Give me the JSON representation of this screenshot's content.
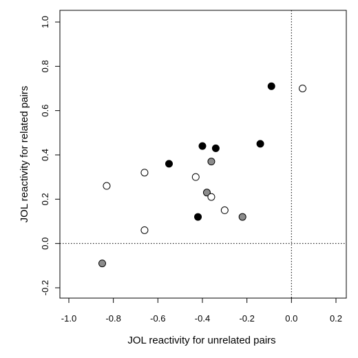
{
  "chart_data": {
    "type": "scatter",
    "xlabel": "JOL reactivity for unrelated pairs",
    "ylabel": "JOL reactivity for related pairs",
    "xlim": [
      -1.0,
      0.2
    ],
    "ylim": [
      -0.2,
      1.0
    ],
    "xticks": [
      -1.0,
      -0.8,
      -0.6,
      -0.4,
      -0.2,
      0.0,
      0.2
    ],
    "yticks": [
      -0.2,
      0.0,
      0.2,
      0.4,
      0.6,
      0.8,
      1.0
    ],
    "x_tick_labels": [
      "-1.0",
      "-0.8",
      "-0.6",
      "-0.4",
      "-0.2",
      "0.0",
      "0.2"
    ],
    "y_tick_labels": [
      "-0.2",
      "0.0",
      "0.2",
      "0.4",
      "0.6",
      "0.8",
      "1.0"
    ],
    "reference_lines": {
      "x": 0.0,
      "y": 0.0,
      "style": "dotted"
    },
    "grid": false,
    "legend": "none",
    "colors": {
      "black": "#000000",
      "gray": "#8c8c8c",
      "white": "#ffffff"
    },
    "series": [
      {
        "fill": "black",
        "points": [
          {
            "x": -0.09,
            "y": 0.71
          },
          {
            "x": -0.14,
            "y": 0.45
          },
          {
            "x": -0.34,
            "y": 0.43
          },
          {
            "x": -0.4,
            "y": 0.44
          },
          {
            "x": -0.55,
            "y": 0.36
          },
          {
            "x": -0.42,
            "y": 0.12
          }
        ]
      },
      {
        "fill": "gray",
        "points": [
          {
            "x": -0.36,
            "y": 0.37
          },
          {
            "x": -0.38,
            "y": 0.23
          },
          {
            "x": -0.22,
            "y": 0.12
          },
          {
            "x": -0.85,
            "y": -0.09
          }
        ]
      },
      {
        "fill": "white",
        "points": [
          {
            "x": 0.05,
            "y": 0.7
          },
          {
            "x": -0.66,
            "y": 0.32
          },
          {
            "x": -0.43,
            "y": 0.3
          },
          {
            "x": -0.83,
            "y": 0.26
          },
          {
            "x": -0.36,
            "y": 0.21
          },
          {
            "x": -0.3,
            "y": 0.15
          },
          {
            "x": -0.66,
            "y": 0.06
          }
        ]
      }
    ]
  }
}
